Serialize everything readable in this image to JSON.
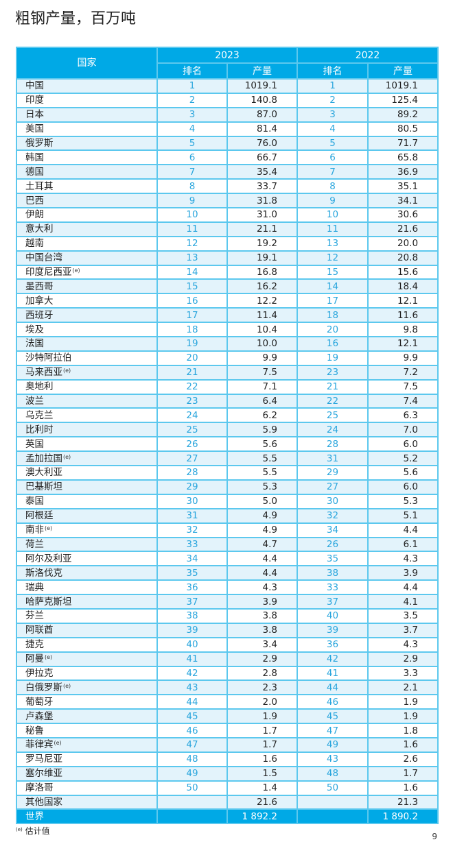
{
  "title": "粗钢产量，百万吨",
  "headers": {
    "country": "国家",
    "year1": "2023",
    "year2": "2022",
    "rank": "排名",
    "production": "产量"
  },
  "rows": [
    [
      "中国",
      "1",
      "1019.1",
      "1",
      "1019.1",
      false
    ],
    [
      "印度",
      "2",
      "140.8",
      "2",
      "125.4",
      false
    ],
    [
      "日本",
      "3",
      "87.0",
      "3",
      "89.2",
      false
    ],
    [
      "美国",
      "4",
      "81.4",
      "4",
      "80.5",
      false
    ],
    [
      "俄罗斯",
      "5",
      "76.0",
      "5",
      "71.7",
      false
    ],
    [
      "韩国",
      "6",
      "66.7",
      "6",
      "65.8",
      false
    ],
    [
      "德国",
      "7",
      "35.4",
      "7",
      "36.9",
      false
    ],
    [
      "土耳其",
      "8",
      "33.7",
      "8",
      "35.1",
      false
    ],
    [
      "巴西",
      "9",
      "31.8",
      "9",
      "34.1",
      false
    ],
    [
      "伊朗",
      "10",
      "31.0",
      "10",
      "30.6",
      false
    ],
    [
      "意大利",
      "11",
      "21.1",
      "11",
      "21.6",
      false
    ],
    [
      "越南",
      "12",
      "19.2",
      "13",
      "20.0",
      false
    ],
    [
      "中国台湾",
      "13",
      "19.1",
      "12",
      "20.8",
      false
    ],
    [
      "印度尼西亚",
      "14",
      "16.8",
      "15",
      "15.6",
      true
    ],
    [
      "墨西哥",
      "15",
      "16.2",
      "14",
      "18.4",
      false
    ],
    [
      "加拿大",
      "16",
      "12.2",
      "17",
      "12.1",
      false
    ],
    [
      "西班牙",
      "17",
      "11.4",
      "18",
      "11.6",
      false
    ],
    [
      "埃及",
      "18",
      "10.4",
      "20",
      "9.8",
      false
    ],
    [
      "法国",
      "19",
      "10.0",
      "16",
      "12.1",
      false
    ],
    [
      "沙特阿拉伯",
      "20",
      "9.9",
      "19",
      "9.9",
      false
    ],
    [
      "马来西亚",
      "21",
      "7.5",
      "23",
      "7.2",
      true
    ],
    [
      "奥地利",
      "22",
      "7.1",
      "21",
      "7.5",
      false
    ],
    [
      "波兰",
      "23",
      "6.4",
      "22",
      "7.4",
      false
    ],
    [
      "乌克兰",
      "24",
      "6.2",
      "25",
      "6.3",
      false
    ],
    [
      "比利时",
      "25",
      "5.9",
      "24",
      "7.0",
      false
    ],
    [
      "英国",
      "26",
      "5.6",
      "28",
      "6.0",
      false
    ],
    [
      "孟加拉国",
      "27",
      "5.5",
      "31",
      "5.2",
      true
    ],
    [
      "澳大利亚",
      "28",
      "5.5",
      "29",
      "5.6",
      false
    ],
    [
      "巴基斯坦",
      "29",
      "5.3",
      "27",
      "6.0",
      false
    ],
    [
      "泰国",
      "30",
      "5.0",
      "30",
      "5.3",
      false
    ],
    [
      "阿根廷",
      "31",
      "4.9",
      "32",
      "5.1",
      false
    ],
    [
      "南非",
      "32",
      "4.9",
      "34",
      "4.4",
      true
    ],
    [
      "荷兰",
      "33",
      "4.7",
      "26",
      "6.1",
      false
    ],
    [
      "阿尔及利亚",
      "34",
      "4.4",
      "35",
      "4.3",
      false
    ],
    [
      "斯洛伐克",
      "35",
      "4.4",
      "38",
      "3.9",
      false
    ],
    [
      "瑞典",
      "36",
      "4.3",
      "33",
      "4.4",
      false
    ],
    [
      "哈萨克斯坦",
      "37",
      "3.9",
      "37",
      "4.1",
      false
    ],
    [
      "芬兰",
      "38",
      "3.8",
      "40",
      "3.5",
      false
    ],
    [
      "阿联酋",
      "39",
      "3.8",
      "39",
      "3.7",
      false
    ],
    [
      "捷克",
      "40",
      "3.4",
      "36",
      "4.3",
      false
    ],
    [
      "阿曼",
      "41",
      "2.9",
      "42",
      "2.9",
      true
    ],
    [
      "伊拉克",
      "42",
      "2.8",
      "41",
      "3.3",
      false
    ],
    [
      "白俄罗斯",
      "43",
      "2.3",
      "44",
      "2.1",
      true
    ],
    [
      "葡萄牙",
      "44",
      "2.0",
      "46",
      "1.9",
      false
    ],
    [
      "卢森堡",
      "45",
      "1.9",
      "45",
      "1.9",
      false
    ],
    [
      "秘鲁",
      "46",
      "1.7",
      "47",
      "1.8",
      false
    ],
    [
      "菲律宾",
      "47",
      "1.7",
      "49",
      "1.6",
      true
    ],
    [
      "罗马尼亚",
      "48",
      "1.6",
      "43",
      "2.6",
      false
    ],
    [
      "塞尔维亚",
      "49",
      "1.5",
      "48",
      "1.7",
      false
    ],
    [
      "摩洛哥",
      "50",
      "1.4",
      "50",
      "1.6",
      false
    ],
    [
      "其他国家",
      "",
      "21.6",
      "",
      "21.3",
      false
    ]
  ],
  "world": {
    "label": "世界",
    "v2023": "1 892.2",
    "v2022": "1 890.2"
  },
  "estimate_mark": "(e)",
  "footnote": "估计值",
  "page_number": "9",
  "colors": {
    "header": "#00a9e6",
    "row_alt": "#e3f3fb",
    "rank_text": "#2aa6dd"
  }
}
